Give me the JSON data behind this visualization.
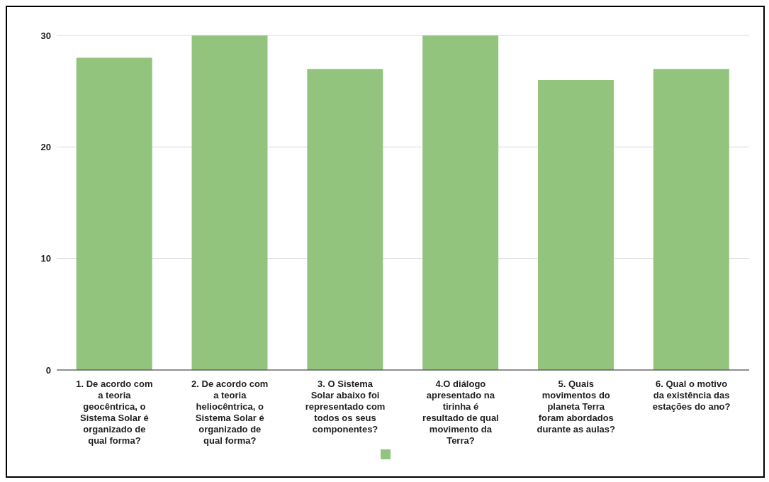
{
  "chart_data": {
    "type": "bar",
    "categories": [
      "1. De acordo com a teoria geocêntrica, o Sistema Solar é organizado de qual forma?",
      "2. De acordo com a teoria heliocêntrica, o Sistema Solar é organizado de qual forma?",
      "3. O Sistema Solar abaixo foi representado com todos os seus componentes?",
      "4.O diálogo apresentado na tirinha é resultado de qual movimento da Terra?",
      "5. Quais movimentos do planeta Terra foram abordados durante as aulas?",
      "6. Qual o motivo da existência das estações do ano?"
    ],
    "series": [
      {
        "color": "#93c47d",
        "values": [
          28,
          30,
          27,
          30,
          26,
          27
        ]
      }
    ],
    "ylim": [
      0,
      30
    ],
    "yticks": [
      0,
      10,
      20,
      30
    ],
    "grid": "y"
  }
}
